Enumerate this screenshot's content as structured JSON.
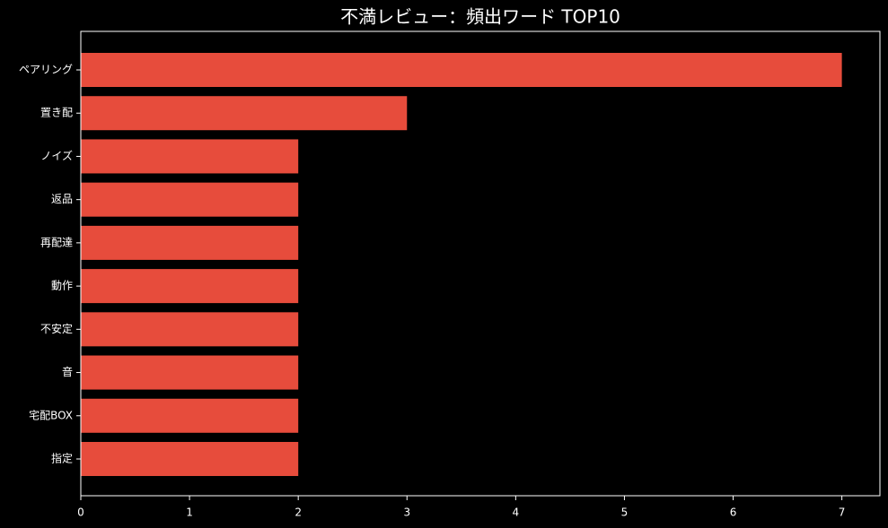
{
  "chart_data": {
    "type": "bar",
    "orientation": "horizontal",
    "title": "不満レビュー：頻出ワード TOP10",
    "categories": [
      "ペアリング",
      "置き配",
      "ノイズ",
      "返品",
      "再配達",
      "動作",
      "不安定",
      "音",
      "宅配BOX",
      "指定"
    ],
    "values": [
      7,
      3,
      2,
      2,
      2,
      2,
      2,
      2,
      2,
      2
    ],
    "color": "#e74c3c",
    "xlim": [
      0,
      7.35
    ],
    "xticks": [
      0,
      1,
      2,
      3,
      4,
      5,
      6,
      7
    ],
    "grid": false
  }
}
